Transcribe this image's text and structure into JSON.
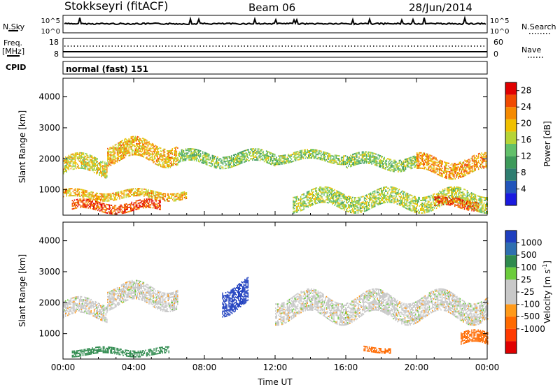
{
  "header": {
    "station": "Stokkseyri (fitACF)",
    "beam": "Beam 06",
    "date": "28/Jun/2014"
  },
  "top_panels": {
    "nsky_label": "N.Sky",
    "nsky_ticks": [
      "10^5",
      "10^0"
    ],
    "nsearch_label": "N.Search",
    "nsearch_ticks": [
      "10^5",
      "10^0"
    ],
    "freq_label_line1": "Freq.",
    "freq_label_line2": "[MHz]",
    "freq_ticks": [
      "18",
      "8"
    ],
    "nave_label": "Nave",
    "nave_ticks": [
      "60",
      "0"
    ],
    "cpid_label": "CPID",
    "cpid_text": "normal (fast) 151"
  },
  "colors": {
    "power_scale": [
      "#1a1adf",
      "#2255bb",
      "#2e7d70",
      "#3d9a5a",
      "#62c06a",
      "#b6d436",
      "#f0c000",
      "#f58a00",
      "#f04a00",
      "#e00000"
    ],
    "velocity_scale": [
      "#1f3fbf",
      "#2e6fb0",
      "#2f8a4e",
      "#6ccc3c",
      "#c8c8c8",
      "#c8c8c8",
      "#ff9a1a",
      "#ff6a00",
      "#ff3a00",
      "#e00000"
    ]
  },
  "chart_data": [
    {
      "type": "heatmap",
      "panel": "power",
      "ylabel": "Slant Range [km]",
      "xlabel": "",
      "yticks": [
        "1000",
        "2000",
        "3000",
        "4000"
      ],
      "ylim": [
        180,
        4600
      ],
      "xticks": [
        "00:00",
        "04:00",
        "08:00",
        "12:00",
        "16:00",
        "20:00",
        "00:00"
      ],
      "xlim_hours": [
        0,
        24
      ],
      "colorbar_label": "Power [dB]",
      "colorbar_ticks": [
        "4",
        "8",
        "12",
        "16",
        "20",
        "24",
        "28"
      ],
      "colorbar_range": [
        0,
        30
      ],
      "echo_bands": [
        {
          "t_start": 0.0,
          "t_end": 2.5,
          "r_start": 1500,
          "r_end": 2000,
          "power_db": 18
        },
        {
          "t_start": 2.5,
          "t_end": 6.5,
          "r_start": 1900,
          "r_end": 2500,
          "power_db": 20
        },
        {
          "t_start": 6.5,
          "t_end": 12.0,
          "r_start": 1800,
          "r_end": 2200,
          "power_db": 14
        },
        {
          "t_start": 12.0,
          "t_end": 16.0,
          "r_start": 1900,
          "r_end": 2200,
          "power_db": 15
        },
        {
          "t_start": 16.0,
          "t_end": 20.0,
          "r_start": 1700,
          "r_end": 2100,
          "power_db": 14
        },
        {
          "t_start": 20.0,
          "t_end": 24.0,
          "r_start": 1500,
          "r_end": 2000,
          "power_db": 22
        },
        {
          "t_start": 0.5,
          "t_end": 5.5,
          "r_start": 300,
          "r_end": 600,
          "power_db": 26
        },
        {
          "t_start": 0.0,
          "t_end": 7.0,
          "r_start": 700,
          "r_end": 950,
          "power_db": 20
        },
        {
          "t_start": 13.0,
          "t_end": 24.0,
          "r_start": 400,
          "r_end": 900,
          "power_db": 16
        },
        {
          "t_start": 21.0,
          "t_end": 23.5,
          "r_start": 400,
          "r_end": 700,
          "power_db": 25
        }
      ]
    },
    {
      "type": "heatmap",
      "panel": "velocity",
      "ylabel": "Slant Range [km]",
      "xlabel": "Time UT",
      "yticks": [
        "1000",
        "2000",
        "3000",
        "4000"
      ],
      "ylim": [
        180,
        4600
      ],
      "xticks": [
        "00:00",
        "04:00",
        "08:00",
        "12:00",
        "16:00",
        "20:00",
        "00:00"
      ],
      "xlim_hours": [
        0,
        24
      ],
      "colorbar_label": "Velocity [m s^-1]",
      "colorbar_ticks": [
        "1000",
        "500",
        "100",
        "25",
        "-25",
        "-100",
        "-500",
        "-1000"
      ],
      "echo_bands": [
        {
          "t_start": 0.0,
          "t_end": 2.5,
          "r_start": 1500,
          "r_end": 2000,
          "velocity": 0
        },
        {
          "t_start": 2.5,
          "t_end": 6.5,
          "r_start": 1900,
          "r_end": 2500,
          "velocity": 0
        },
        {
          "t_start": 9.0,
          "t_end": 10.5,
          "r_start": 1800,
          "r_end": 2600,
          "velocity": 800
        },
        {
          "t_start": 12.0,
          "t_end": 24.0,
          "r_start": 1500,
          "r_end": 2200,
          "velocity": 0
        },
        {
          "t_start": 0.5,
          "t_end": 6.0,
          "r_start": 300,
          "r_end": 500,
          "velocity": 150
        },
        {
          "t_start": 17.0,
          "t_end": 18.5,
          "r_start": 400,
          "r_end": 550,
          "velocity": -300
        },
        {
          "t_start": 22.5,
          "t_end": 24.0,
          "r_start": 600,
          "r_end": 1000,
          "velocity": -300
        }
      ]
    }
  ]
}
